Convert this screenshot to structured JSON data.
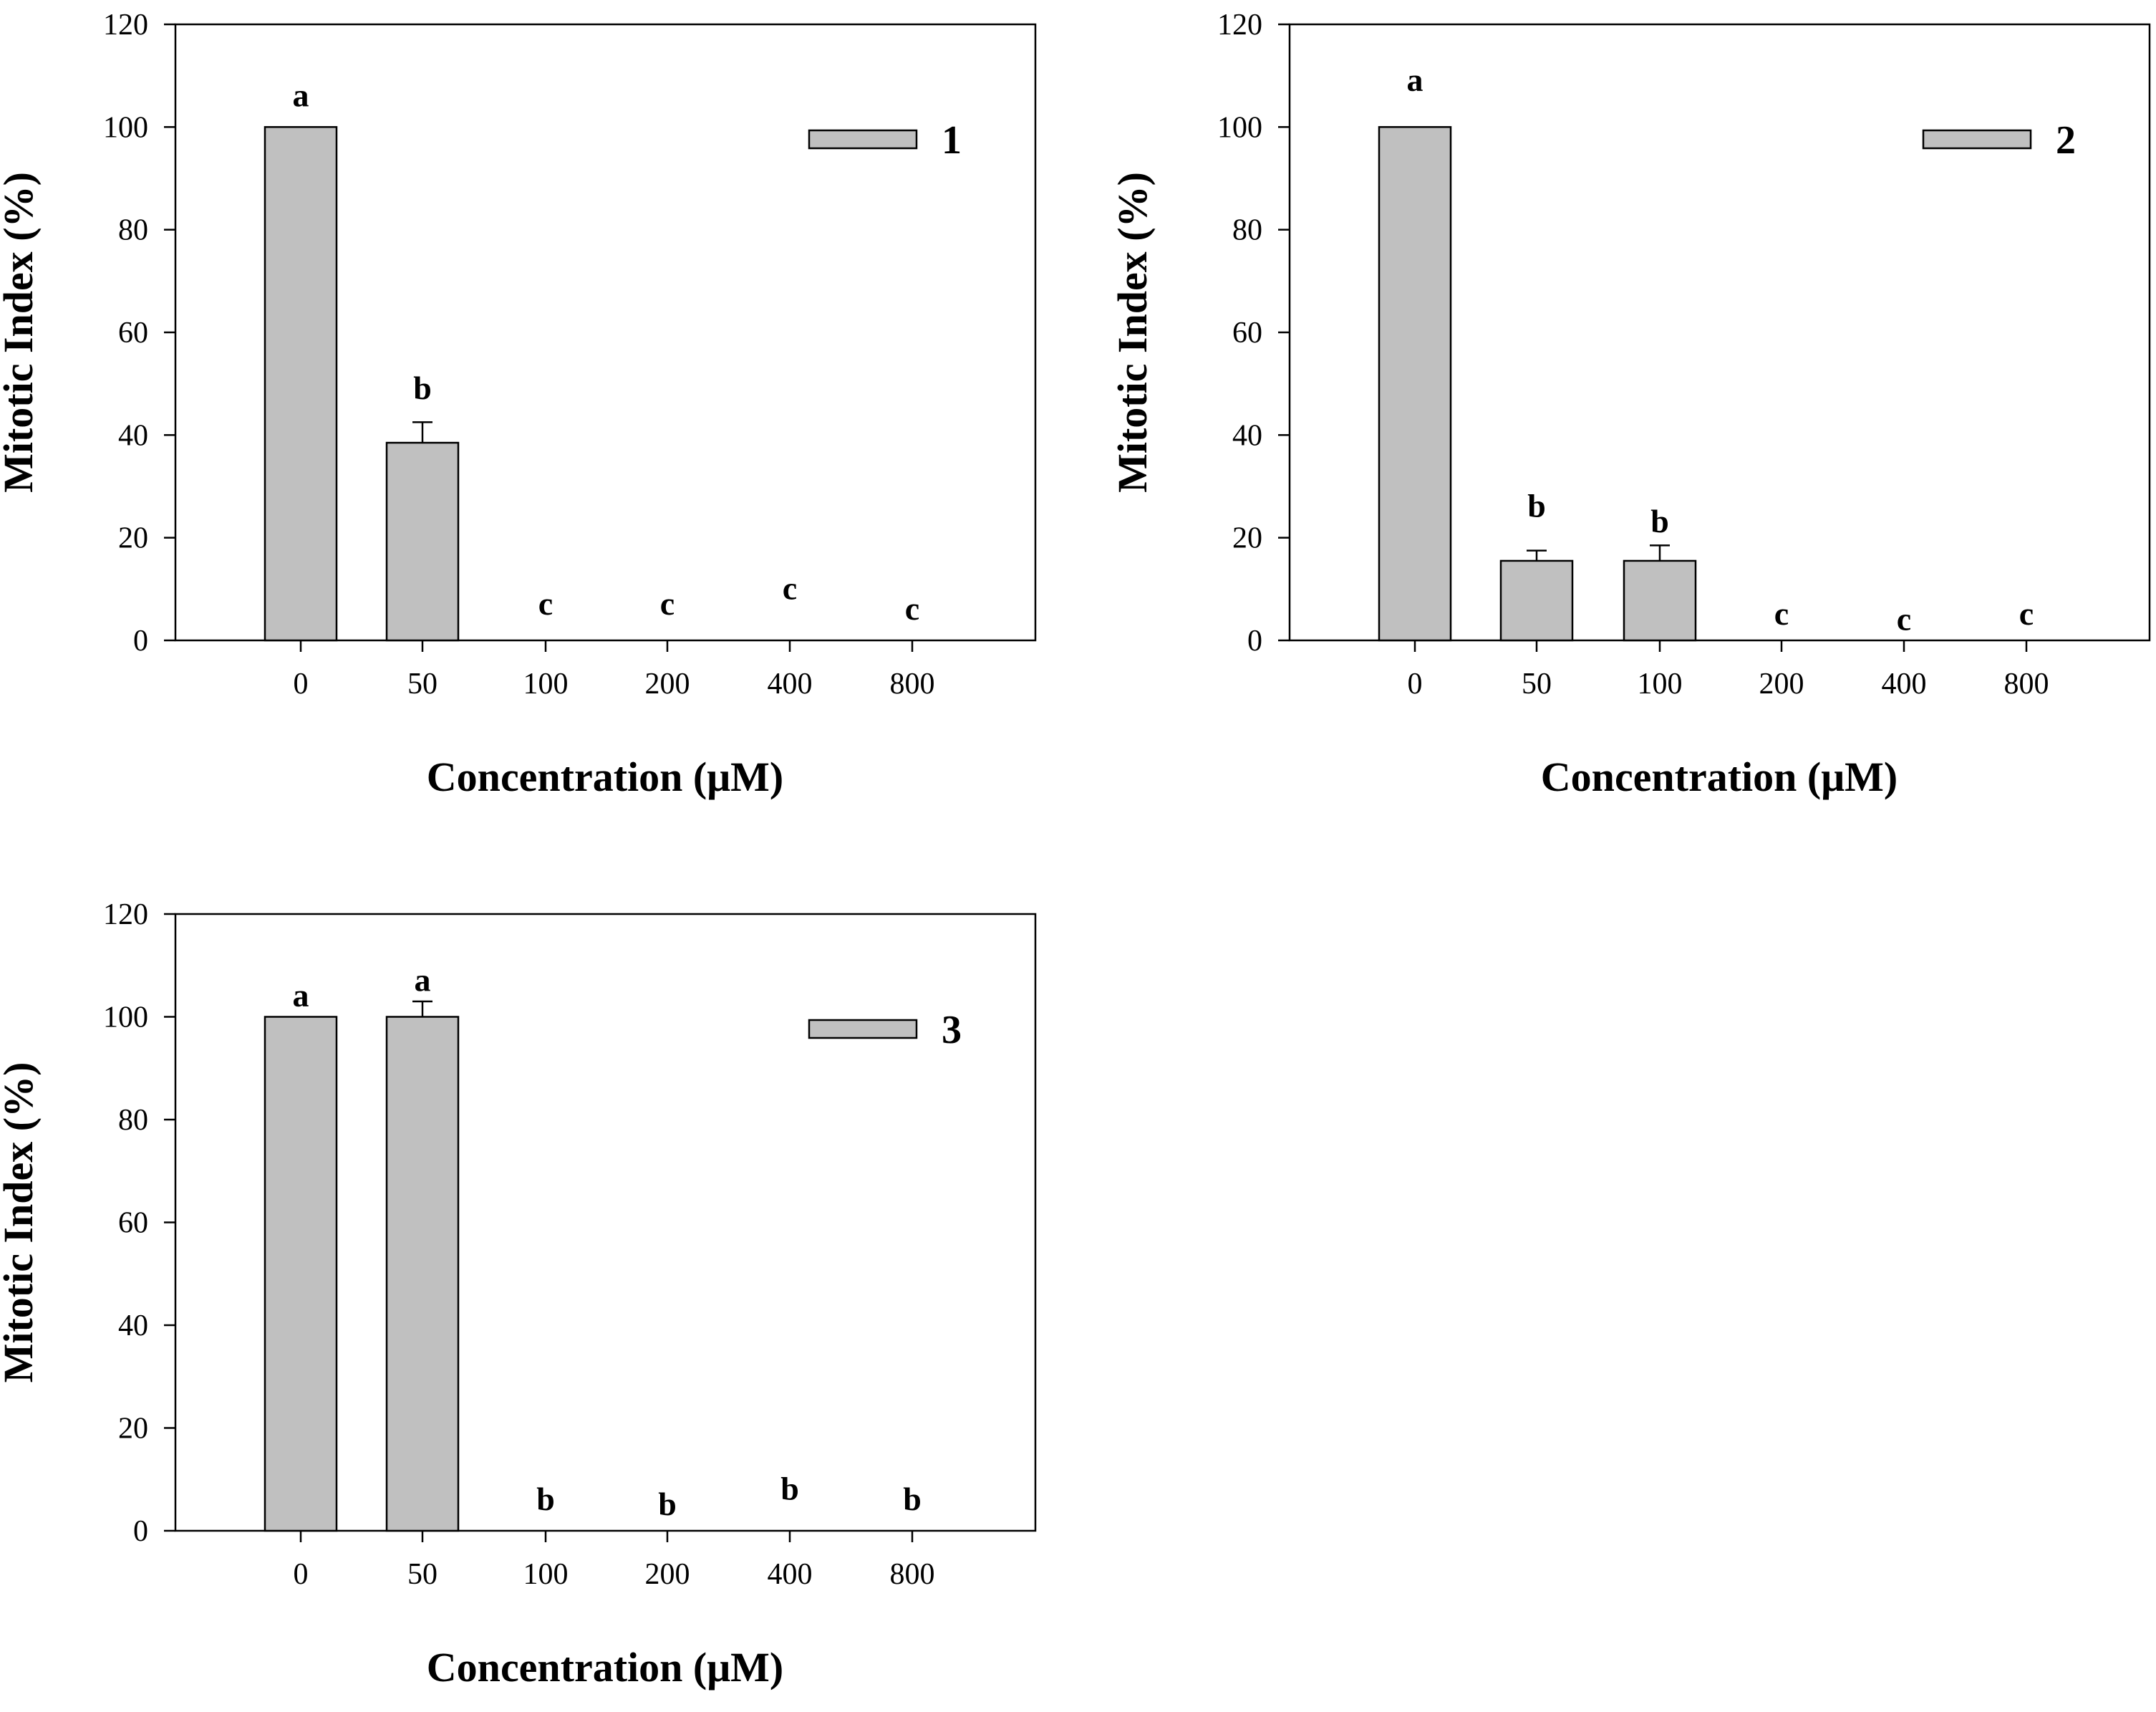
{
  "chart_data": [
    {
      "type": "bar",
      "title": "",
      "xlabel": "Concentration (μM)",
      "ylabel": "Mitotic Index (%)",
      "categories": [
        "0",
        "50",
        "100",
        "200",
        "400",
        "800"
      ],
      "ylim": [
        0,
        120
      ],
      "yticks": [
        "0",
        "20",
        "40",
        "60",
        "80",
        "100",
        "120"
      ],
      "series": [
        {
          "name": "1",
          "color": "#c0c0c0",
          "values": [
            100,
            38.5,
            0,
            0,
            0,
            0
          ],
          "errors": [
            0,
            4,
            0,
            0,
            0,
            0
          ],
          "significance": [
            "a",
            "b",
            "c",
            "c",
            "c",
            "c"
          ],
          "significance_y": [
            106,
            49,
            7,
            7,
            10,
            6
          ]
        }
      ],
      "legend": "top-right"
    },
    {
      "type": "bar",
      "title": "",
      "xlabel": "Concentration (μM)",
      "ylabel": "Mitotic Index (%)",
      "categories": [
        "0",
        "50",
        "100",
        "200",
        "400",
        "800"
      ],
      "ylim": [
        0,
        120
      ],
      "yticks": [
        "0",
        "20",
        "40",
        "60",
        "80",
        "100",
        "120"
      ],
      "series": [
        {
          "name": "2",
          "color": "#c0c0c0",
          "values": [
            100,
            15.5,
            15.5,
            0,
            0,
            0
          ],
          "errors": [
            0,
            2,
            3,
            0,
            0,
            0
          ],
          "significance": [
            "a",
            "b",
            "b",
            "c",
            "c",
            "c"
          ],
          "significance_y": [
            109,
            26,
            23,
            5,
            4,
            5
          ]
        }
      ],
      "legend": "top-right"
    },
    {
      "type": "bar",
      "title": "",
      "xlabel": "Concentration (μM)",
      "ylabel": "Mitotic Index (%)",
      "categories": [
        "0",
        "50",
        "100",
        "200",
        "400",
        "800"
      ],
      "ylim": [
        0,
        120
      ],
      "yticks": [
        "0",
        "20",
        "40",
        "60",
        "80",
        "100",
        "120"
      ],
      "series": [
        {
          "name": "3",
          "color": "#c0c0c0",
          "values": [
            100,
            100,
            0,
            0,
            0,
            0
          ],
          "errors": [
            0,
            3,
            0,
            0,
            0,
            0
          ],
          "significance": [
            "a",
            "a",
            "b",
            "b",
            "b",
            "b"
          ],
          "significance_y": [
            104,
            107,
            6,
            5,
            8,
            6
          ]
        }
      ],
      "legend": "top-right"
    }
  ]
}
